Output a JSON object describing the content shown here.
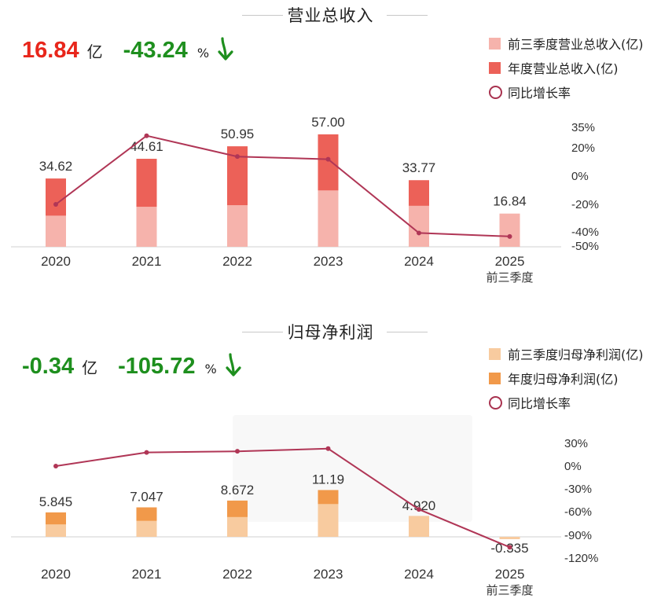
{
  "revenue": {
    "title": "营业总收入",
    "headline": {
      "value": "16.84",
      "unit": "亿",
      "pct": "-43.24",
      "pct_unit": "%"
    },
    "colors": {
      "headline_value": "#e8261b",
      "headline_pct": "#1e8f1e",
      "arrow": "#1e8f1e",
      "q3": "#f6b3ac",
      "annual": "#ec6158",
      "line": "#b03656",
      "axis": "#e0e0e0"
    },
    "legend": [
      "前三季度营业总收入(亿)",
      "年度营业总收入(亿)",
      "同比增长率"
    ],
    "chart_data": {
      "type": "bar",
      "categories": [
        "2020",
        "2021",
        "2022",
        "2023",
        "2024",
        "2025"
      ],
      "category_sublabels": [
        "",
        "",
        "",
        "",
        "",
        "前三季度"
      ],
      "series": [
        {
          "name": "前三季度营业总收入(亿)",
          "values": [
            15.8,
            20.3,
            21.1,
            28.6,
            20.8,
            16.84
          ]
        },
        {
          "name": "年度营业总收入(亿)",
          "values": [
            34.62,
            44.61,
            50.95,
            57.0,
            33.77,
            null
          ]
        },
        {
          "name": "同比增长率",
          "axis": "right",
          "values": [
            -20.0,
            28.8,
            13.8,
            11.9,
            -40.8,
            -43.24
          ]
        }
      ],
      "data_labels": [
        "34.62",
        "44.61",
        "50.95",
        "57.00",
        "33.77",
        "16.84"
      ],
      "ylim": [
        0,
        80
      ],
      "right_ticks": [
        35,
        20,
        0,
        -20,
        -40,
        -50
      ],
      "right_tick_labels": [
        "35%",
        "20%",
        "0%",
        "-20%",
        "-40%",
        "-50%"
      ]
    }
  },
  "profit": {
    "title": "归母净利润",
    "headline": {
      "value": "-0.34",
      "unit": "亿",
      "pct": "-105.72",
      "pct_unit": "%"
    },
    "colors": {
      "headline_value": "#1e8f1e",
      "headline_pct": "#1e8f1e",
      "arrow": "#1e8f1e",
      "q3": "#f8cb9f",
      "annual": "#f1994a",
      "line": "#b03656",
      "axis": "#e0e0e0"
    },
    "legend": [
      "前三季度归母净利润(亿)",
      "年度归母净利润(亿)",
      "同比增长率"
    ],
    "chart_data": {
      "type": "bar",
      "categories": [
        "2020",
        "2021",
        "2022",
        "2023",
        "2024",
        "2025"
      ],
      "category_sublabels": [
        "",
        "",
        "",
        "",
        "",
        "前三季度"
      ],
      "series": [
        {
          "name": "前三季度归母净利润(亿)",
          "values": [
            2.98,
            3.83,
            4.74,
            7.85,
            5.0,
            -0.335
          ]
        },
        {
          "name": "年度归母净利润(亿)",
          "values": [
            5.845,
            7.047,
            8.672,
            11.19,
            4.92,
            null
          ]
        },
        {
          "name": "同比增长率",
          "axis": "right",
          "values": [
            0.0,
            18.0,
            19.5,
            23.0,
            -57.0,
            -105.72
          ]
        }
      ],
      "data_labels": [
        "5.845",
        "7.047",
        "8.672",
        "11.19",
        "4.920",
        "-0.335"
      ],
      "ylim": [
        -0.5,
        14
      ],
      "right_ticks": [
        30,
        0,
        -30,
        -60,
        -90,
        -120
      ],
      "right_tick_labels": [
        "30%",
        "0%",
        "-30%",
        "-60%",
        "-90%",
        "-120%"
      ]
    }
  }
}
